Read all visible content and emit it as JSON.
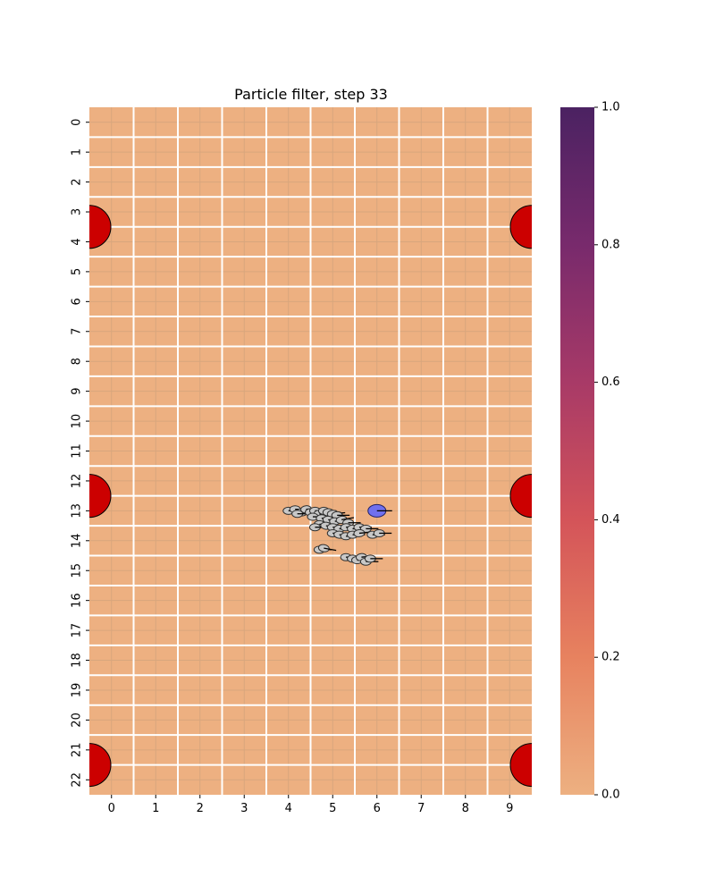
{
  "chart_data": {
    "type": "heatmap",
    "title": "Particle filter, step 33",
    "xlabel": "",
    "ylabel": "",
    "columns": 10,
    "rows": 23,
    "x_tick_labels": [
      "0",
      "1",
      "2",
      "3",
      "4",
      "5",
      "6",
      "7",
      "8",
      "9"
    ],
    "y_tick_labels": [
      "0",
      "1",
      "2",
      "3",
      "4",
      "5",
      "6",
      "7",
      "8",
      "9",
      "10",
      "11",
      "12",
      "13",
      "14",
      "15",
      "16",
      "17",
      "18",
      "19",
      "20",
      "21",
      "22"
    ],
    "cell_value": 0.0,
    "grid": true,
    "colormap": {
      "name": "flare",
      "vmin": 0.0,
      "vmax": 1.0,
      "ticks": [
        "0.0",
        "0.2",
        "0.4",
        "0.6",
        "0.8",
        "1.0"
      ],
      "stops": [
        "#edb081",
        "#e7825f",
        "#d45459",
        "#a83a67",
        "#782a6c",
        "#4b2262"
      ]
    },
    "landmarks": [
      {
        "x": -0.5,
        "y": 3.5
      },
      {
        "x": 9.5,
        "y": 3.5
      },
      {
        "x": -0.5,
        "y": 12.5
      },
      {
        "x": 9.5,
        "y": 12.5
      },
      {
        "x": -0.5,
        "y": 21.5
      },
      {
        "x": 9.5,
        "y": 21.5
      }
    ],
    "landmark_color": "#cc0000",
    "robot": {
      "x": 6.0,
      "y": 13.0,
      "heading_deg": 0,
      "color": "#7070ee"
    },
    "particles": [
      {
        "x": 4.0,
        "y": 13.0,
        "heading_deg": 0
      },
      {
        "x": 4.15,
        "y": 12.95,
        "heading_deg": 0
      },
      {
        "x": 4.3,
        "y": 13.05,
        "heading_deg": 5
      },
      {
        "x": 4.2,
        "y": 13.1,
        "heading_deg": 0
      },
      {
        "x": 4.4,
        "y": 12.95,
        "heading_deg": -5
      },
      {
        "x": 4.5,
        "y": 13.05,
        "heading_deg": 0
      },
      {
        "x": 4.6,
        "y": 13.0,
        "heading_deg": 0
      },
      {
        "x": 4.7,
        "y": 13.1,
        "heading_deg": 5
      },
      {
        "x": 4.8,
        "y": 13.0,
        "heading_deg": 0
      },
      {
        "x": 4.9,
        "y": 13.05,
        "heading_deg": 0
      },
      {
        "x": 5.0,
        "y": 13.1,
        "heading_deg": -5
      },
      {
        "x": 5.1,
        "y": 13.15,
        "heading_deg": 0
      },
      {
        "x": 4.55,
        "y": 13.2,
        "heading_deg": 0
      },
      {
        "x": 4.75,
        "y": 13.25,
        "heading_deg": 0
      },
      {
        "x": 4.9,
        "y": 13.3,
        "heading_deg": 5
      },
      {
        "x": 5.05,
        "y": 13.35,
        "heading_deg": 0
      },
      {
        "x": 5.2,
        "y": 13.3,
        "heading_deg": -10
      },
      {
        "x": 5.35,
        "y": 13.4,
        "heading_deg": 0
      },
      {
        "x": 4.7,
        "y": 13.45,
        "heading_deg": 0
      },
      {
        "x": 4.6,
        "y": 13.55,
        "heading_deg": 0
      },
      {
        "x": 4.85,
        "y": 13.5,
        "heading_deg": 5
      },
      {
        "x": 5.0,
        "y": 13.55,
        "heading_deg": 0
      },
      {
        "x": 5.15,
        "y": 13.6,
        "heading_deg": 0
      },
      {
        "x": 5.3,
        "y": 13.55,
        "heading_deg": -5
      },
      {
        "x": 5.45,
        "y": 13.6,
        "heading_deg": 0
      },
      {
        "x": 5.6,
        "y": 13.55,
        "heading_deg": 0
      },
      {
        "x": 5.75,
        "y": 13.6,
        "heading_deg": 0
      },
      {
        "x": 5.0,
        "y": 13.75,
        "heading_deg": 0
      },
      {
        "x": 5.15,
        "y": 13.8,
        "heading_deg": 5
      },
      {
        "x": 5.3,
        "y": 13.85,
        "heading_deg": 0
      },
      {
        "x": 5.45,
        "y": 13.8,
        "heading_deg": 0
      },
      {
        "x": 5.6,
        "y": 13.75,
        "heading_deg": -5
      },
      {
        "x": 5.9,
        "y": 13.8,
        "heading_deg": 0
      },
      {
        "x": 6.05,
        "y": 13.75,
        "heading_deg": 0
      },
      {
        "x": 4.7,
        "y": 14.3,
        "heading_deg": 0
      },
      {
        "x": 4.8,
        "y": 14.25,
        "heading_deg": 10
      },
      {
        "x": 5.3,
        "y": 14.55,
        "heading_deg": 0
      },
      {
        "x": 5.45,
        "y": 14.6,
        "heading_deg": 0
      },
      {
        "x": 5.55,
        "y": 14.65,
        "heading_deg": 0
      },
      {
        "x": 5.65,
        "y": 14.55,
        "heading_deg": -5
      },
      {
        "x": 5.75,
        "y": 14.7,
        "heading_deg": 0
      },
      {
        "x": 5.85,
        "y": 14.6,
        "heading_deg": 0
      }
    ]
  }
}
